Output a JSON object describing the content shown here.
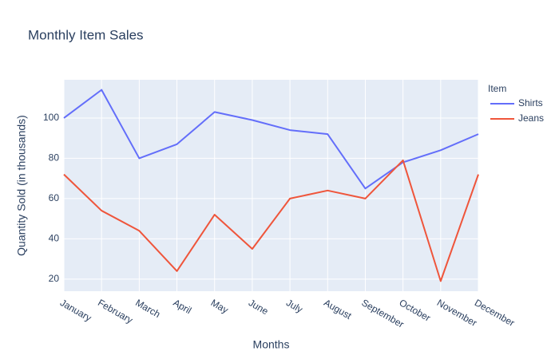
{
  "chart_data": {
    "type": "line",
    "title": "Monthly Item Sales",
    "x_label": "Months",
    "y_label": "Quantity Sold (in thousands)",
    "legend_title": "Item",
    "categories": [
      "January",
      "February",
      "March",
      "April",
      "May",
      "June",
      "July",
      "August",
      "September",
      "October",
      "November",
      "December"
    ],
    "series": [
      {
        "name": "Shirts",
        "color": "#636efa",
        "values": [
          100,
          114,
          80,
          87,
          103,
          99,
          94,
          92,
          65,
          78,
          84,
          92
        ]
      },
      {
        "name": "Jeans",
        "color": "#EF553B",
        "values": [
          72,
          54,
          44,
          24,
          52,
          35,
          60,
          64,
          60,
          79,
          19,
          72
        ]
      }
    ],
    "ylim": [
      14,
      119
    ],
    "yticks": [
      20,
      40,
      60,
      80,
      100
    ],
    "grid": true
  }
}
